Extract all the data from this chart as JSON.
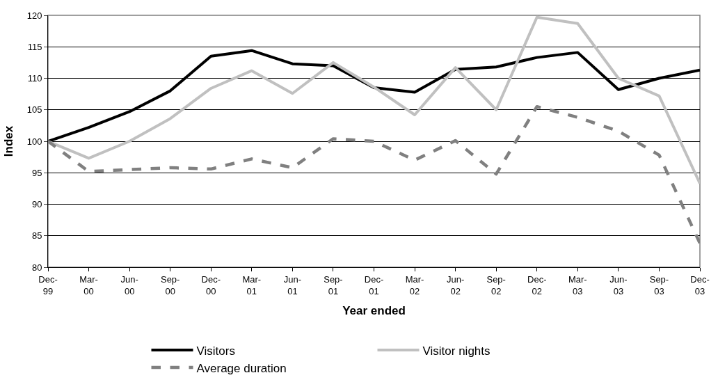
{
  "chart_data": {
    "type": "line",
    "xlabel": "Year ended",
    "ylabel": "Index",
    "categories": [
      "Dec-\n99",
      "Mar-\n00",
      "Jun-\n00",
      "Sep-\n00",
      "Dec-\n00",
      "Mar-\n01",
      "Jun-\n01",
      "Sep-\n01",
      "Dec-\n01",
      "Mar-\n02",
      "Jun-\n02",
      "Sep-\n02",
      "Dec-\n02",
      "Mar-\n03",
      "Jun-\n03",
      "Sep-\n03",
      "Dec-\n03"
    ],
    "series": [
      {
        "name": "Visitors",
        "color": "#000000",
        "line_style": "solid",
        "values": [
          100,
          102.2,
          104.7,
          108,
          113.5,
          114.4,
          112.3,
          112,
          108.5,
          107.8,
          111.4,
          111.8,
          113.3,
          114.1,
          108.2,
          110,
          111.3
        ]
      },
      {
        "name": "Visitor nights",
        "color": "#c0c0c0",
        "line_style": "solid",
        "values": [
          100,
          97.3,
          100,
          103.6,
          108.4,
          111.2,
          107.6,
          112.5,
          108.6,
          104.2,
          111.7,
          105,
          119.7,
          118.7,
          110,
          107.2,
          93.3
        ]
      },
      {
        "name": "Average duration",
        "color": "#808080",
        "line_style": "dashed",
        "values": [
          100,
          95.2,
          95.5,
          95.8,
          95.6,
          97.2,
          95.8,
          100.4,
          100,
          97,
          100.1,
          94.8,
          105.5,
          103.8,
          101.6,
          97.8,
          83.8
        ]
      }
    ],
    "ylim": [
      80,
      120
    ],
    "yticks": [
      80,
      85,
      90,
      95,
      100,
      105,
      110,
      115,
      120
    ],
    "grid": "y",
    "legend": "bottom",
    "marker": "none"
  }
}
